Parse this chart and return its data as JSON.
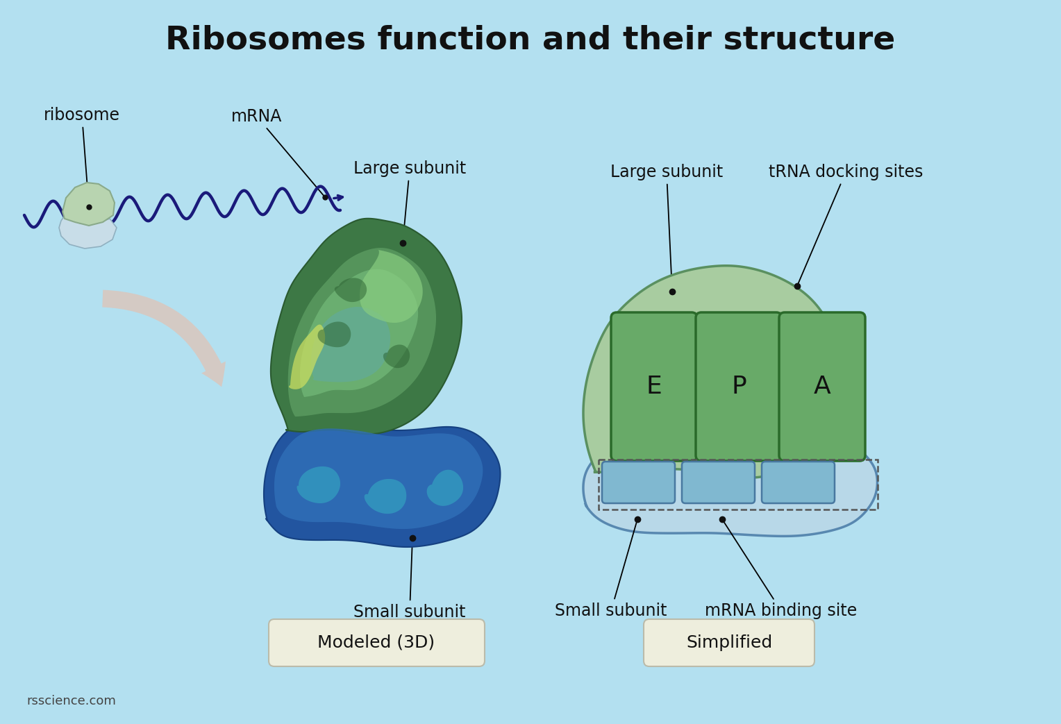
{
  "title": "Ribosomes function and their structure",
  "bg_color": "#b3e0f0",
  "title_fontsize": 34,
  "title_fontweight": "bold",
  "labels": {
    "ribosome": "ribosome",
    "mrna_top": "mRNA",
    "large_subunit": "Large subunit",
    "trna_docking": "tRNA docking sites",
    "small_subunit": "Small subunit",
    "mrna_binding": "mRNA binding site",
    "modeled": "Modeled (3D)",
    "simplified": "Simplified",
    "epa": [
      "E",
      "P",
      "A"
    ],
    "credit": "rsscience.com"
  },
  "colors": {
    "wavy_line": "#1a1a7a",
    "arrow_color": "#d8c8c0",
    "dot_color": "#111111",
    "label_box": "#eeeedd",
    "ribosome_green": "#b8d4b0",
    "ribosome_blue": "#c8dde8",
    "large_3d_dark": "#3a7040",
    "large_3d_mid": "#5a9858",
    "large_3d_light": "#78b870",
    "large_3d_bright": "#90cc88",
    "large_3d_yellow": "#d0e060",
    "small_3d_dark": "#1a4a80",
    "small_3d_mid": "#2a6aaa",
    "small_3d_light": "#4090c0",
    "small_3d_teal": "#38b0b8",
    "simp_large_fill": "#a8cca0",
    "simp_large_outline": "#5a9060",
    "simp_small_fill": "#b8d8e8",
    "simp_small_outline": "#5888b0",
    "epa_fill": "#68aa68",
    "epa_outline": "#2a6a2a",
    "mrna_slot_fill": "#80b8d0",
    "mrna_slot_outline": "#4878a0"
  }
}
